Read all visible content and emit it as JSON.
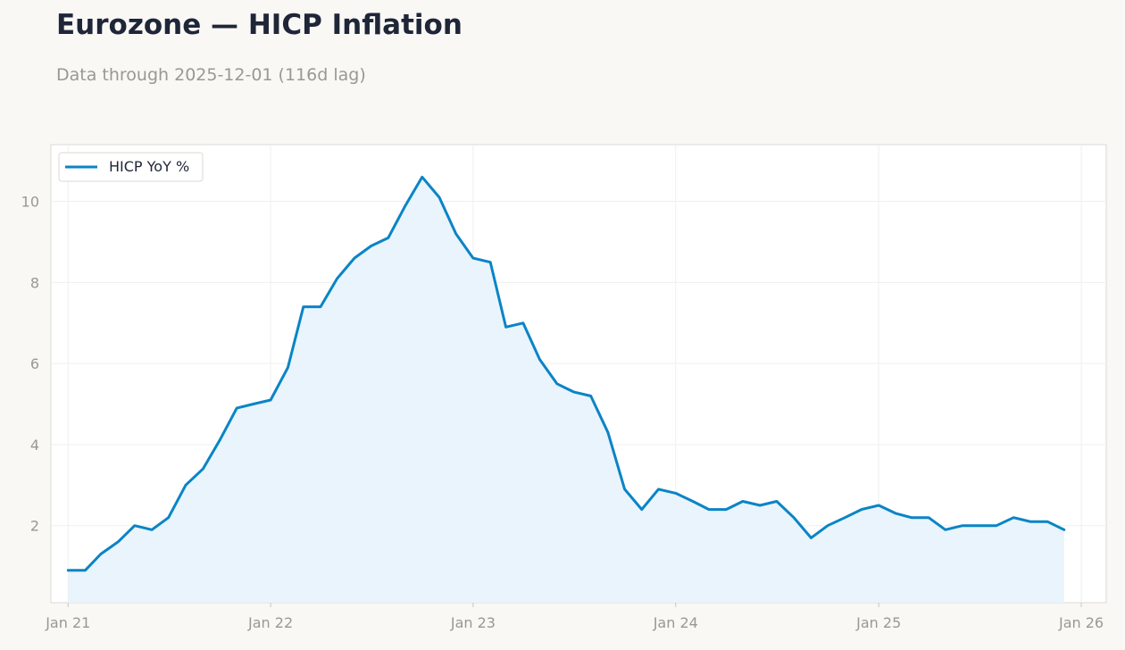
{
  "title": "Eurozone — HICP Inflation",
  "subtitle": "Data through 2025-12-01 (116d lag)",
  "colors": {
    "line": "#0a84c6",
    "fill": "#e9f4fc",
    "grid": "#efefef",
    "axis_text": "#9a9893",
    "title": "#1e2638"
  },
  "chart_data": {
    "type": "area",
    "title": "Eurozone — HICP Inflation",
    "subtitle": "Data through 2025-12-01 (116d lag)",
    "xlabel": "",
    "ylabel": "",
    "xlim": [
      "2020-12-01",
      "2026-02-15"
    ],
    "ylim": [
      0.1,
      11.4
    ],
    "grid": true,
    "legend": "top-left",
    "x_ticks": [
      {
        "date": "2021-01-01",
        "label": "Jan 21"
      },
      {
        "date": "2022-01-01",
        "label": "Jan 22"
      },
      {
        "date": "2023-01-01",
        "label": "Jan 23"
      },
      {
        "date": "2024-01-01",
        "label": "Jan 24"
      },
      {
        "date": "2025-01-01",
        "label": "Jan 25"
      },
      {
        "date": "2026-01-01",
        "label": "Jan 26"
      }
    ],
    "y_ticks": [
      2,
      4,
      6,
      8,
      10
    ],
    "series": [
      {
        "name": "HICP YoY %",
        "x": [
          "2021-01",
          "2021-02",
          "2021-03",
          "2021-04",
          "2021-05",
          "2021-06",
          "2021-07",
          "2021-08",
          "2021-09",
          "2021-10",
          "2021-11",
          "2021-12",
          "2022-01",
          "2022-02",
          "2022-03",
          "2022-04",
          "2022-05",
          "2022-06",
          "2022-07",
          "2022-08",
          "2022-09",
          "2022-10",
          "2022-11",
          "2022-12",
          "2023-01",
          "2023-02",
          "2023-03",
          "2023-04",
          "2023-05",
          "2023-06",
          "2023-07",
          "2023-08",
          "2023-09",
          "2023-10",
          "2023-11",
          "2023-12",
          "2024-01",
          "2024-02",
          "2024-03",
          "2024-04",
          "2024-05",
          "2024-06",
          "2024-07",
          "2024-08",
          "2024-09",
          "2024-10",
          "2024-11",
          "2024-12",
          "2025-01",
          "2025-02",
          "2025-03",
          "2025-04",
          "2025-05",
          "2025-06",
          "2025-07",
          "2025-08",
          "2025-09",
          "2025-10",
          "2025-11",
          "2025-12"
        ],
        "values": [
          0.9,
          0.9,
          1.3,
          1.6,
          2.0,
          1.9,
          2.2,
          3.0,
          3.4,
          4.1,
          4.9,
          5.0,
          5.1,
          5.9,
          7.4,
          7.4,
          8.1,
          8.6,
          8.9,
          9.1,
          9.9,
          10.6,
          10.1,
          9.2,
          8.6,
          8.5,
          6.9,
          7.0,
          6.1,
          5.5,
          5.3,
          5.2,
          4.3,
          2.9,
          2.4,
          2.9,
          2.8,
          2.6,
          2.4,
          2.4,
          2.6,
          2.5,
          2.6,
          2.2,
          1.7,
          2.0,
          2.2,
          2.4,
          2.5,
          2.3,
          2.2,
          2.2,
          1.9,
          2.0,
          2.0,
          2.0,
          2.2,
          2.1,
          2.1,
          1.9
        ]
      }
    ]
  }
}
